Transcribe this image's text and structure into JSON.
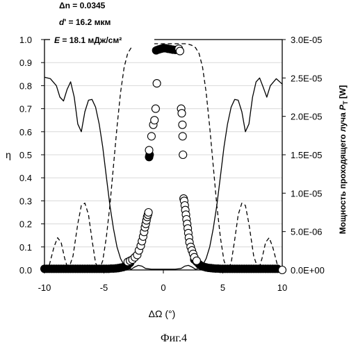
{
  "chart_data": {
    "type": "scatter",
    "title": "",
    "annotations": {
      "line1_sym": "Δ",
      "line1_rest": "n = 0.0345",
      "line2_sym": "d",
      "line2_rest": "' = 16.2 мкм",
      "line3_sym": "E",
      "line3_rest": " = 18.1 мДж/см²"
    },
    "xlabel_sym": "ΔΩ",
    "xlabel_rest": " (°)",
    "ylabel_left": "η",
    "ylabel_right_main": "Мощность проходящего луча ",
    "ylabel_right_sym": "P",
    "ylabel_right_sub": "T",
    "ylabel_right_unit": " [W]",
    "caption": "Фиг.4",
    "xlim": [
      -10,
      10
    ],
    "ylim_left": [
      0,
      1
    ],
    "ylim_right": [
      0,
      3e-05
    ],
    "x_ticks": [
      "-10",
      "-5",
      "0",
      "5",
      "10"
    ],
    "y_left_ticks": [
      "0.0",
      "0.1",
      "0.2",
      "0.3",
      "0.4",
      "0.5",
      "0.6",
      "0.7",
      "0.8",
      "0.9",
      "1.0"
    ],
    "y_right_ticks": [
      "0.0E+00",
      "5.0E-06",
      "1.0E-05",
      "1.5E-05",
      "2.0E-05",
      "2.5E-05",
      "3.0E-05"
    ],
    "series": [
      {
        "name": "",
        "style": "solid-line",
        "axis": "right",
        "x": [
          -10,
          -9.5,
          -9,
          -8.7,
          -8.4,
          -8.1,
          -7.8,
          -7.5,
          -7.2,
          -6.9,
          -6.6,
          -6.3,
          -6,
          -5.7,
          -5.4,
          -5.1,
          -4.8,
          -4.5,
          -4.2,
          -3.9,
          -3.6,
          -3.3,
          -3,
          -2.7,
          -2.4,
          -2.1,
          -1.8,
          -1.5,
          -1,
          -0.5,
          0,
          0.5,
          1,
          1.5,
          1.8,
          2.1,
          2.4,
          2.7,
          3,
          3.3,
          3.6,
          3.9,
          4.2,
          4.5,
          4.8,
          5.1,
          5.4,
          5.7,
          6,
          6.3,
          6.6,
          6.9,
          7.2,
          7.5,
          7.8,
          8.1,
          8.4,
          8.7,
          9,
          9.5,
          10
        ],
        "values": [
          2.51e-05,
          2.49e-05,
          2.4e-05,
          2.25e-05,
          2.2e-05,
          2.35e-05,
          2.45e-05,
          2.25e-05,
          1.9e-05,
          1.8e-05,
          2.06e-05,
          2.21e-05,
          2.22e-05,
          2.12e-05,
          1.9e-05,
          1.6e-05,
          1.22e-05,
          8.4e-06,
          5.4e-06,
          3e-06,
          1.5e-06,
          6e-07,
          2e-07,
          1e-07,
          4e-07,
          6e-07,
          5e-07,
          2e-07,
          1e-07,
          1e-07,
          1e-07,
          1e-07,
          1e-07,
          2e-07,
          5e-07,
          6e-07,
          4e-07,
          1e-07,
          2e-07,
          6e-07,
          1.5e-06,
          3e-06,
          5.4e-06,
          8.4e-06,
          1.22e-05,
          1.6e-05,
          1.9e-05,
          2.12e-05,
          2.22e-05,
          2.21e-05,
          2.06e-05,
          1.8e-05,
          1.9e-05,
          2.25e-05,
          2.45e-05,
          2.5e-05,
          2.38e-05,
          2.25e-05,
          2.4e-05,
          2.49e-05,
          2.42e-05
        ]
      },
      {
        "name": "",
        "style": "dashed-line",
        "axis": "left",
        "x": [
          -10,
          -9.6,
          -9.2,
          -8.9,
          -8.6,
          -8.3,
          -8,
          -7.6,
          -7.2,
          -6.9,
          -6.6,
          -6.3,
          -6,
          -5.7,
          -5.4,
          -5.1,
          -4.8,
          -4.5,
          -4.2,
          -3.9,
          -3.6,
          -3.3,
          -3,
          -2.7,
          -2.4,
          -2.1,
          -1.8,
          -1.5,
          -1.2,
          -0.8,
          0,
          0.8,
          1.2,
          1.5,
          1.8,
          2.1,
          2.4,
          2.7,
          3,
          3.3,
          3.6,
          3.9,
          4.2,
          4.5,
          4.8,
          5.1,
          5.4,
          5.7,
          6,
          6.3,
          6.6,
          6.9,
          7.2,
          7.6,
          8,
          8.3,
          8.6,
          8.9,
          9.2,
          9.6,
          10
        ],
        "values": [
          0.0,
          0.02,
          0.1,
          0.14,
          0.12,
          0.05,
          0.0,
          0.06,
          0.2,
          0.28,
          0.29,
          0.24,
          0.13,
          0.03,
          0.0,
          0.04,
          0.14,
          0.28,
          0.45,
          0.62,
          0.77,
          0.88,
          0.94,
          0.965,
          0.975,
          0.98,
          0.982,
          0.982,
          0.982,
          0.982,
          0.982,
          0.982,
          0.982,
          0.982,
          0.982,
          0.98,
          0.975,
          0.965,
          0.94,
          0.88,
          0.77,
          0.62,
          0.45,
          0.28,
          0.14,
          0.04,
          0.0,
          0.03,
          0.13,
          0.24,
          0.29,
          0.28,
          0.2,
          0.06,
          0.0,
          0.05,
          0.12,
          0.14,
          0.1,
          0.02,
          0.0
        ]
      },
      {
        "name": "",
        "style": "filled-circles",
        "axis": "left",
        "x": [
          -10,
          -9.8,
          -9.6,
          -9.4,
          -9.2,
          -9,
          -8.8,
          -8.6,
          -8.4,
          -8.2,
          -8,
          -7.8,
          -7.6,
          -7.4,
          -7.2,
          -7,
          -6.8,
          -6.6,
          -6.4,
          -6.2,
          -6,
          -5.8,
          -5.6,
          -5.4,
          -5.2,
          -5,
          -4.8,
          -4.6,
          -4.4,
          -4.2,
          -4,
          -3.8,
          -3.6,
          -3.4,
          -3.2,
          -3,
          -2.8,
          -2.6,
          -1.2,
          -1.15,
          -0.6,
          -0.4,
          -0.2,
          0,
          0.2,
          0.4,
          0.6,
          0.8,
          1.0,
          2.6,
          2.8,
          3,
          3.2,
          3.4,
          3.6,
          3.8,
          4,
          4.2,
          4.4,
          4.6,
          4.8,
          5,
          5.2,
          5.4,
          5.6,
          5.8,
          6,
          6.2,
          6.4,
          6.6,
          6.8,
          7,
          7.2,
          7.4,
          7.6,
          7.8,
          8,
          8.2,
          8.4,
          8.6,
          8.8,
          9,
          9.2,
          9.4,
          9.6
        ],
        "values": [
          0.005,
          0.005,
          0.005,
          0.005,
          0.005,
          0.005,
          0.005,
          0.005,
          0.005,
          0.005,
          0.005,
          0.005,
          0.005,
          0.005,
          0.005,
          0.005,
          0.005,
          0.005,
          0.005,
          0.005,
          0.005,
          0.005,
          0.005,
          0.005,
          0.005,
          0.005,
          0.005,
          0.005,
          0.006,
          0.006,
          0.007,
          0.008,
          0.01,
          0.012,
          0.015,
          0.02,
          0.03,
          0.045,
          0.49,
          0.5,
          0.953,
          0.957,
          0.96,
          0.962,
          0.962,
          0.96,
          0.958,
          0.956,
          0.955,
          0.045,
          0.035,
          0.025,
          0.018,
          0.014,
          0.011,
          0.009,
          0.008,
          0.007,
          0.006,
          0.006,
          0.005,
          0.005,
          0.005,
          0.005,
          0.005,
          0.005,
          0.005,
          0.005,
          0.005,
          0.005,
          0.005,
          0.005,
          0.005,
          0.005,
          0.005,
          0.005,
          0.005,
          0.005,
          0.005,
          0.005,
          0.005,
          0.005,
          0.005,
          0.005,
          0.005
        ]
      },
      {
        "name": "",
        "style": "open-circles",
        "axis": "left",
        "x": [
          -3.0,
          -2.8,
          -2.6,
          -2.4,
          -2.2,
          -2.05,
          -1.9,
          -1.8,
          -1.7,
          -1.62,
          -1.55,
          -1.48,
          -1.42,
          -1.36,
          -1.3,
          -1.25,
          -1.2,
          -1.0,
          -0.85,
          -0.75,
          -0.65,
          -0.55,
          1.3,
          1.4,
          1.5,
          1.55,
          1.6,
          1.62,
          1.65,
          1.7,
          1.75,
          1.8,
          1.85,
          1.9,
          1.95,
          2.0,
          2.05,
          2.1,
          2.15,
          2.2,
          2.3,
          2.4,
          2.5,
          2.6,
          2.8,
          10
        ],
        "values": [
          0.035,
          0.04,
          0.045,
          0.055,
          0.065,
          0.085,
          0.105,
          0.125,
          0.145,
          0.165,
          0.185,
          0.2,
          0.215,
          0.23,
          0.24,
          0.25,
          0.52,
          0.58,
          0.63,
          0.65,
          0.7,
          0.81,
          0.96,
          0.95,
          0.7,
          0.68,
          0.63,
          0.58,
          0.5,
          0.31,
          0.3,
          0.28,
          0.26,
          0.24,
          0.22,
          0.2,
          0.18,
          0.16,
          0.14,
          0.12,
          0.1,
          0.085,
          0.07,
          0.055,
          0.04,
          0.0
        ]
      }
    ]
  }
}
